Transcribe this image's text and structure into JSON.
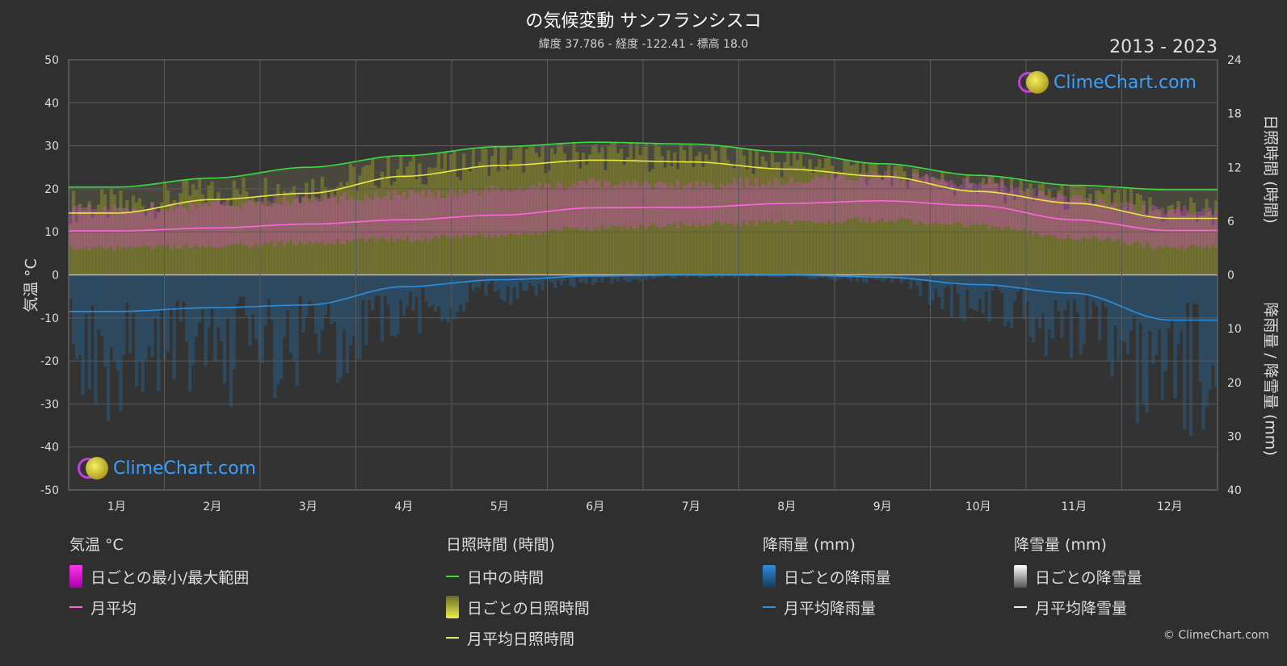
{
  "chart_data": {
    "type": "area",
    "title": "の気候変動 サンフランシスコ",
    "subtitle": "緯度 37.786 - 経度 -122.41 - 標高 18.0",
    "period": "2013 - 2023",
    "categories": [
      "1月",
      "2月",
      "3月",
      "4月",
      "5月",
      "6月",
      "7月",
      "8月",
      "9月",
      "10月",
      "11月",
      "12月"
    ],
    "left_axis": {
      "label": "気温 °C",
      "range": [
        -50,
        50
      ],
      "ticks": [
        "50",
        "40",
        "30",
        "20",
        "10",
        "0",
        "-10",
        "-20",
        "-30",
        "-40",
        "-50"
      ]
    },
    "right_axis_top": {
      "label": "日照時間 (時間)",
      "range": [
        0,
        24
      ],
      "ticks": [
        "24",
        "18",
        "12",
        "6",
        "0"
      ]
    },
    "right_axis_bottom": {
      "label": "降雨量 / 降雪量 (mm)",
      "range": [
        0,
        40
      ],
      "ticks": [
        "0",
        "10",
        "20",
        "30",
        "40"
      ]
    },
    "grid": true,
    "series": [
      {
        "name": "日中の時間",
        "unit": "hours",
        "color": "#3cdc3c",
        "values": [
          9.8,
          10.8,
          12.0,
          13.3,
          14.3,
          14.8,
          14.6,
          13.7,
          12.4,
          11.1,
          10.0,
          9.5
        ]
      },
      {
        "name": "月平均日照時間",
        "unit": "hours",
        "color": "#e8e840",
        "values": [
          6.9,
          8.4,
          9.1,
          11.0,
          12.2,
          12.8,
          12.6,
          11.8,
          11.0,
          9.3,
          8.0,
          6.3
        ]
      },
      {
        "name": "月平均",
        "unit": "°C",
        "color": "#ff66dd",
        "values": [
          10.2,
          10.9,
          11.8,
          12.8,
          13.9,
          15.6,
          15.7,
          16.6,
          17.2,
          16.1,
          12.8,
          10.3
        ]
      },
      {
        "name": "月平均降雨量",
        "unit": "mm",
        "color": "#2a8fe0",
        "values": [
          6.8,
          6.1,
          5.6,
          2.2,
          0.9,
          0.2,
          0.0,
          0.0,
          0.4,
          1.8,
          3.4,
          8.4
        ]
      }
    ],
    "daily_temp_range": {
      "name": "日ごとの最小/最大範囲",
      "min": [
        7.0,
        7.5,
        8.2,
        9.0,
        10.0,
        11.8,
        12.3,
        13.1,
        13.5,
        12.3,
        9.5,
        7.2
      ],
      "max": [
        14.0,
        15.0,
        16.2,
        17.5,
        18.5,
        20.0,
        19.8,
        20.4,
        21.8,
        20.2,
        16.2,
        13.8
      ]
    },
    "daily_sunshine": {
      "name": "日ごとの日照時間"
    },
    "daily_rain": {
      "name": "日ごとの降雨量",
      "values": [
        15,
        13,
        12,
        6,
        3,
        1,
        0.3,
        0.3,
        1,
        5,
        9,
        17
      ]
    },
    "daily_snow": {
      "name": "日ごとの降雪量"
    },
    "monthly_snow": {
      "name": "月平均降雪量",
      "values": [
        0,
        0,
        0,
        0,
        0,
        0,
        0,
        0,
        0,
        0,
        0,
        0
      ]
    }
  },
  "legend": {
    "temperature": {
      "header": "気温 °C",
      "range": "日ごとの最小/最大範囲",
      "avg": "月平均"
    },
    "sunshine": {
      "header": "日照時間 (時間)",
      "daylight": "日中の時間",
      "daily": "日ごとの日照時間",
      "avg": "月平均日照時間"
    },
    "rain": {
      "header": "降雨量 (mm)",
      "daily": "日ごとの降雨量",
      "avg": "月平均降雨量"
    },
    "snow": {
      "header": "降雪量 (mm)",
      "daily": "日ごとの降雪量",
      "avg": "月平均降雪量"
    }
  },
  "logo_text": "ClimeChart.com",
  "copyright": "© ClimeChart.com"
}
